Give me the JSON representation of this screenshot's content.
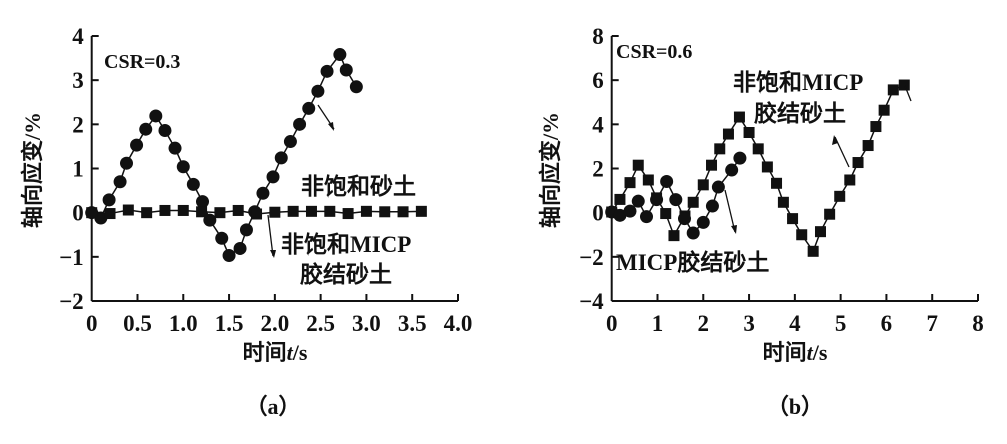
{
  "chart_data": [
    {
      "type": "line",
      "panel_label": "（a）",
      "annotation": "CSR=0.3",
      "xlabel": "时间t/s",
      "xlabel_parts": [
        "时间",
        "t",
        "/s"
      ],
      "ylabel": "轴向应变/%",
      "xlim": [
        0,
        4.0
      ],
      "ylim": [
        -2,
        4
      ],
      "xticks": [
        "0",
        "0.5",
        "1.0",
        "1.5",
        "2.0",
        "2.5",
        "3.0",
        "3.5",
        "4.0"
      ],
      "xtick_values": [
        0,
        0.5,
        1.0,
        1.5,
        2.0,
        2.5,
        3.0,
        3.5,
        4.0
      ],
      "yticks": [
        "−2",
        "−1",
        "0",
        "1",
        "2",
        "3",
        "4"
      ],
      "ytick_values": [
        -2,
        -1,
        0,
        1,
        2,
        3,
        4
      ],
      "grid": false,
      "series": [
        {
          "name": "非饱和砂土",
          "label_lines": [
            "非饱和砂土"
          ],
          "marker": "circle",
          "x": [
            0,
            0.1,
            0.19,
            0.31,
            0.38,
            0.49,
            0.59,
            0.7,
            0.8,
            0.91,
            1.0,
            1.11,
            1.21,
            1.29,
            1.42,
            1.5,
            1.62,
            1.69,
            1.78,
            1.87,
            1.98,
            2.07,
            2.17,
            2.27,
            2.37,
            2.47,
            2.57,
            2.71,
            2.78,
            2.89
          ],
          "y": [
            0,
            -0.12,
            0.29,
            0.7,
            1.12,
            1.53,
            1.89,
            2.19,
            1.86,
            1.46,
            1.04,
            0.64,
            0.25,
            -0.17,
            -0.58,
            -0.97,
            -0.81,
            -0.39,
            0.02,
            0.44,
            0.81,
            1.24,
            1.61,
            2.0,
            2.36,
            2.75,
            3.2,
            3.58,
            3.23,
            2.85
          ]
        },
        {
          "name": "非饱和MICP胶结砂土",
          "label_lines": [
            "非饱和MICP",
            "胶结砂土"
          ],
          "marker": "square",
          "x": [
            0,
            0.2,
            0.4,
            0.6,
            0.8,
            1.0,
            1.2,
            1.4,
            1.6,
            1.8,
            2.0,
            2.2,
            2.4,
            2.6,
            2.8,
            3.0,
            3.2,
            3.4,
            3.6
          ],
          "y": [
            0,
            -0.02,
            0.06,
            0.0,
            0.05,
            0.05,
            0.02,
            0.0,
            0.05,
            -0.03,
            0.01,
            0.03,
            0.03,
            0.03,
            -0.02,
            0.03,
            0.02,
            0.02,
            0.03
          ]
        }
      ]
    },
    {
      "type": "line",
      "panel_label": "（b）",
      "annotation": "CSR=0.6",
      "xlabel": "时间t/s",
      "xlabel_parts": [
        "时间",
        "t",
        "/s"
      ],
      "ylabel": "轴向应变/%",
      "xlim": [
        0,
        8
      ],
      "ylim": [
        -4,
        8
      ],
      "xticks": [
        "0",
        "1",
        "2",
        "3",
        "4",
        "5",
        "6",
        "7",
        "8"
      ],
      "xtick_values": [
        0,
        1,
        2,
        3,
        4,
        5,
        6,
        7,
        8
      ],
      "yticks": [
        "−4",
        "−2",
        "0",
        "2",
        "4",
        "6",
        "8"
      ],
      "ytick_values": [
        -4,
        -2,
        0,
        2,
        4,
        6,
        8
      ],
      "grid": false,
      "series": [
        {
          "name": "非饱和MICP胶结砂土",
          "label_lines": [
            "非饱和MICP",
            "胶结砂土"
          ],
          "marker": "square",
          "x": [
            0,
            0.18,
            0.4,
            0.58,
            0.8,
            0.98,
            1.18,
            1.36,
            1.6,
            1.78,
            2.0,
            2.18,
            2.36,
            2.55,
            2.79,
            3.0,
            3.2,
            3.4,
            3.6,
            3.75,
            3.95,
            4.15,
            4.4,
            4.56,
            4.76,
            4.98,
            5.2,
            5.38,
            5.6,
            5.77,
            5.95,
            6.15,
            6.39
          ],
          "y": [
            0.03,
            0.6,
            1.36,
            2.15,
            1.48,
            0.67,
            -0.04,
            -1.04,
            -0.15,
            0.47,
            1.26,
            2.15,
            2.89,
            3.56,
            4.33,
            3.63,
            2.89,
            2.07,
            1.33,
            0.47,
            -0.27,
            -1.0,
            -1.75,
            -0.86,
            -0.07,
            0.74,
            1.48,
            2.27,
            3.04,
            3.9,
            4.64,
            5.56,
            5.78
          ]
        },
        {
          "name": "MICP胶结砂土",
          "label_lines": [
            "MICP胶结砂土"
          ],
          "marker": "circle",
          "x": [
            0,
            0.18,
            0.4,
            0.58,
            0.76,
            0.98,
            1.2,
            1.4,
            1.59,
            1.78,
            2.0,
            2.2,
            2.33,
            2.62,
            2.8
          ],
          "y": [
            0.03,
            -0.12,
            0.07,
            0.52,
            -0.18,
            0.59,
            1.41,
            0.59,
            -0.27,
            -0.92,
            -0.44,
            0.3,
            1.16,
            1.93,
            2.47
          ]
        }
      ]
    }
  ]
}
